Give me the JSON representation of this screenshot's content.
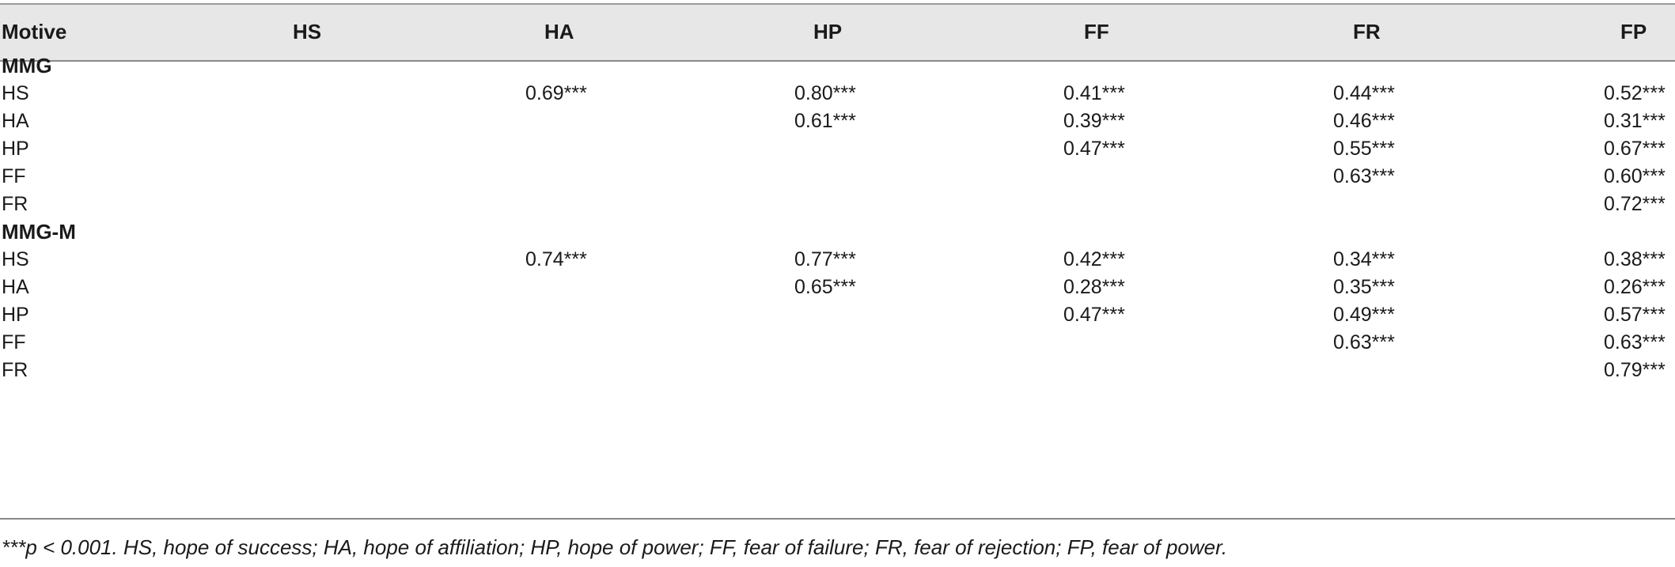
{
  "table": {
    "headers": [
      "Motive",
      "HS",
      "HA",
      "HP",
      "FF",
      "FR",
      "FP"
    ],
    "sections": [
      {
        "title": "MMG",
        "rows": [
          {
            "label": "HS",
            "HA": "0.69***",
            "HP": "0.80***",
            "FF": "0.41***",
            "FR": "0.44***",
            "FP": "0.52***"
          },
          {
            "label": "HA",
            "HA": "",
            "HP": "0.61***",
            "FF": "0.39***",
            "FR": "0.46***",
            "FP": "0.31***"
          },
          {
            "label": "HP",
            "HA": "",
            "HP": "",
            "FF": "0.47***",
            "FR": "0.55***",
            "FP": "0.67***"
          },
          {
            "label": "FF",
            "HA": "",
            "HP": "",
            "FF": "",
            "FR": "0.63***",
            "FP": "0.60***"
          },
          {
            "label": "FR",
            "HA": "",
            "HP": "",
            "FF": "",
            "FR": "",
            "FP": "0.72***"
          }
        ]
      },
      {
        "title": "MMG-M",
        "rows": [
          {
            "label": "HS",
            "HA": "0.74***",
            "HP": "0.77***",
            "FF": "0.42***",
            "FR": "0.34***",
            "FP": "0.38***"
          },
          {
            "label": "HA",
            "HA": "",
            "HP": "0.65***",
            "FF": "0.28***",
            "FR": "0.35***",
            "FP": "0.26***"
          },
          {
            "label": "HP",
            "HA": "",
            "HP": "",
            "FF": "0.47***",
            "FR": "0.49***",
            "FP": "0.57***"
          },
          {
            "label": "FF",
            "HA": "",
            "HP": "",
            "FF": "",
            "FR": "0.63***",
            "FP": "0.63***"
          },
          {
            "label": "FR",
            "HA": "",
            "HP": "",
            "FF": "",
            "FR": "",
            "FP": "0.79***"
          }
        ]
      }
    ],
    "footnote": "***p < 0.001. HS, hope of success; HA, hope of affiliation; HP, hope of power; FF, fear of failure; FR, fear of rejection; FP, fear of power."
  }
}
